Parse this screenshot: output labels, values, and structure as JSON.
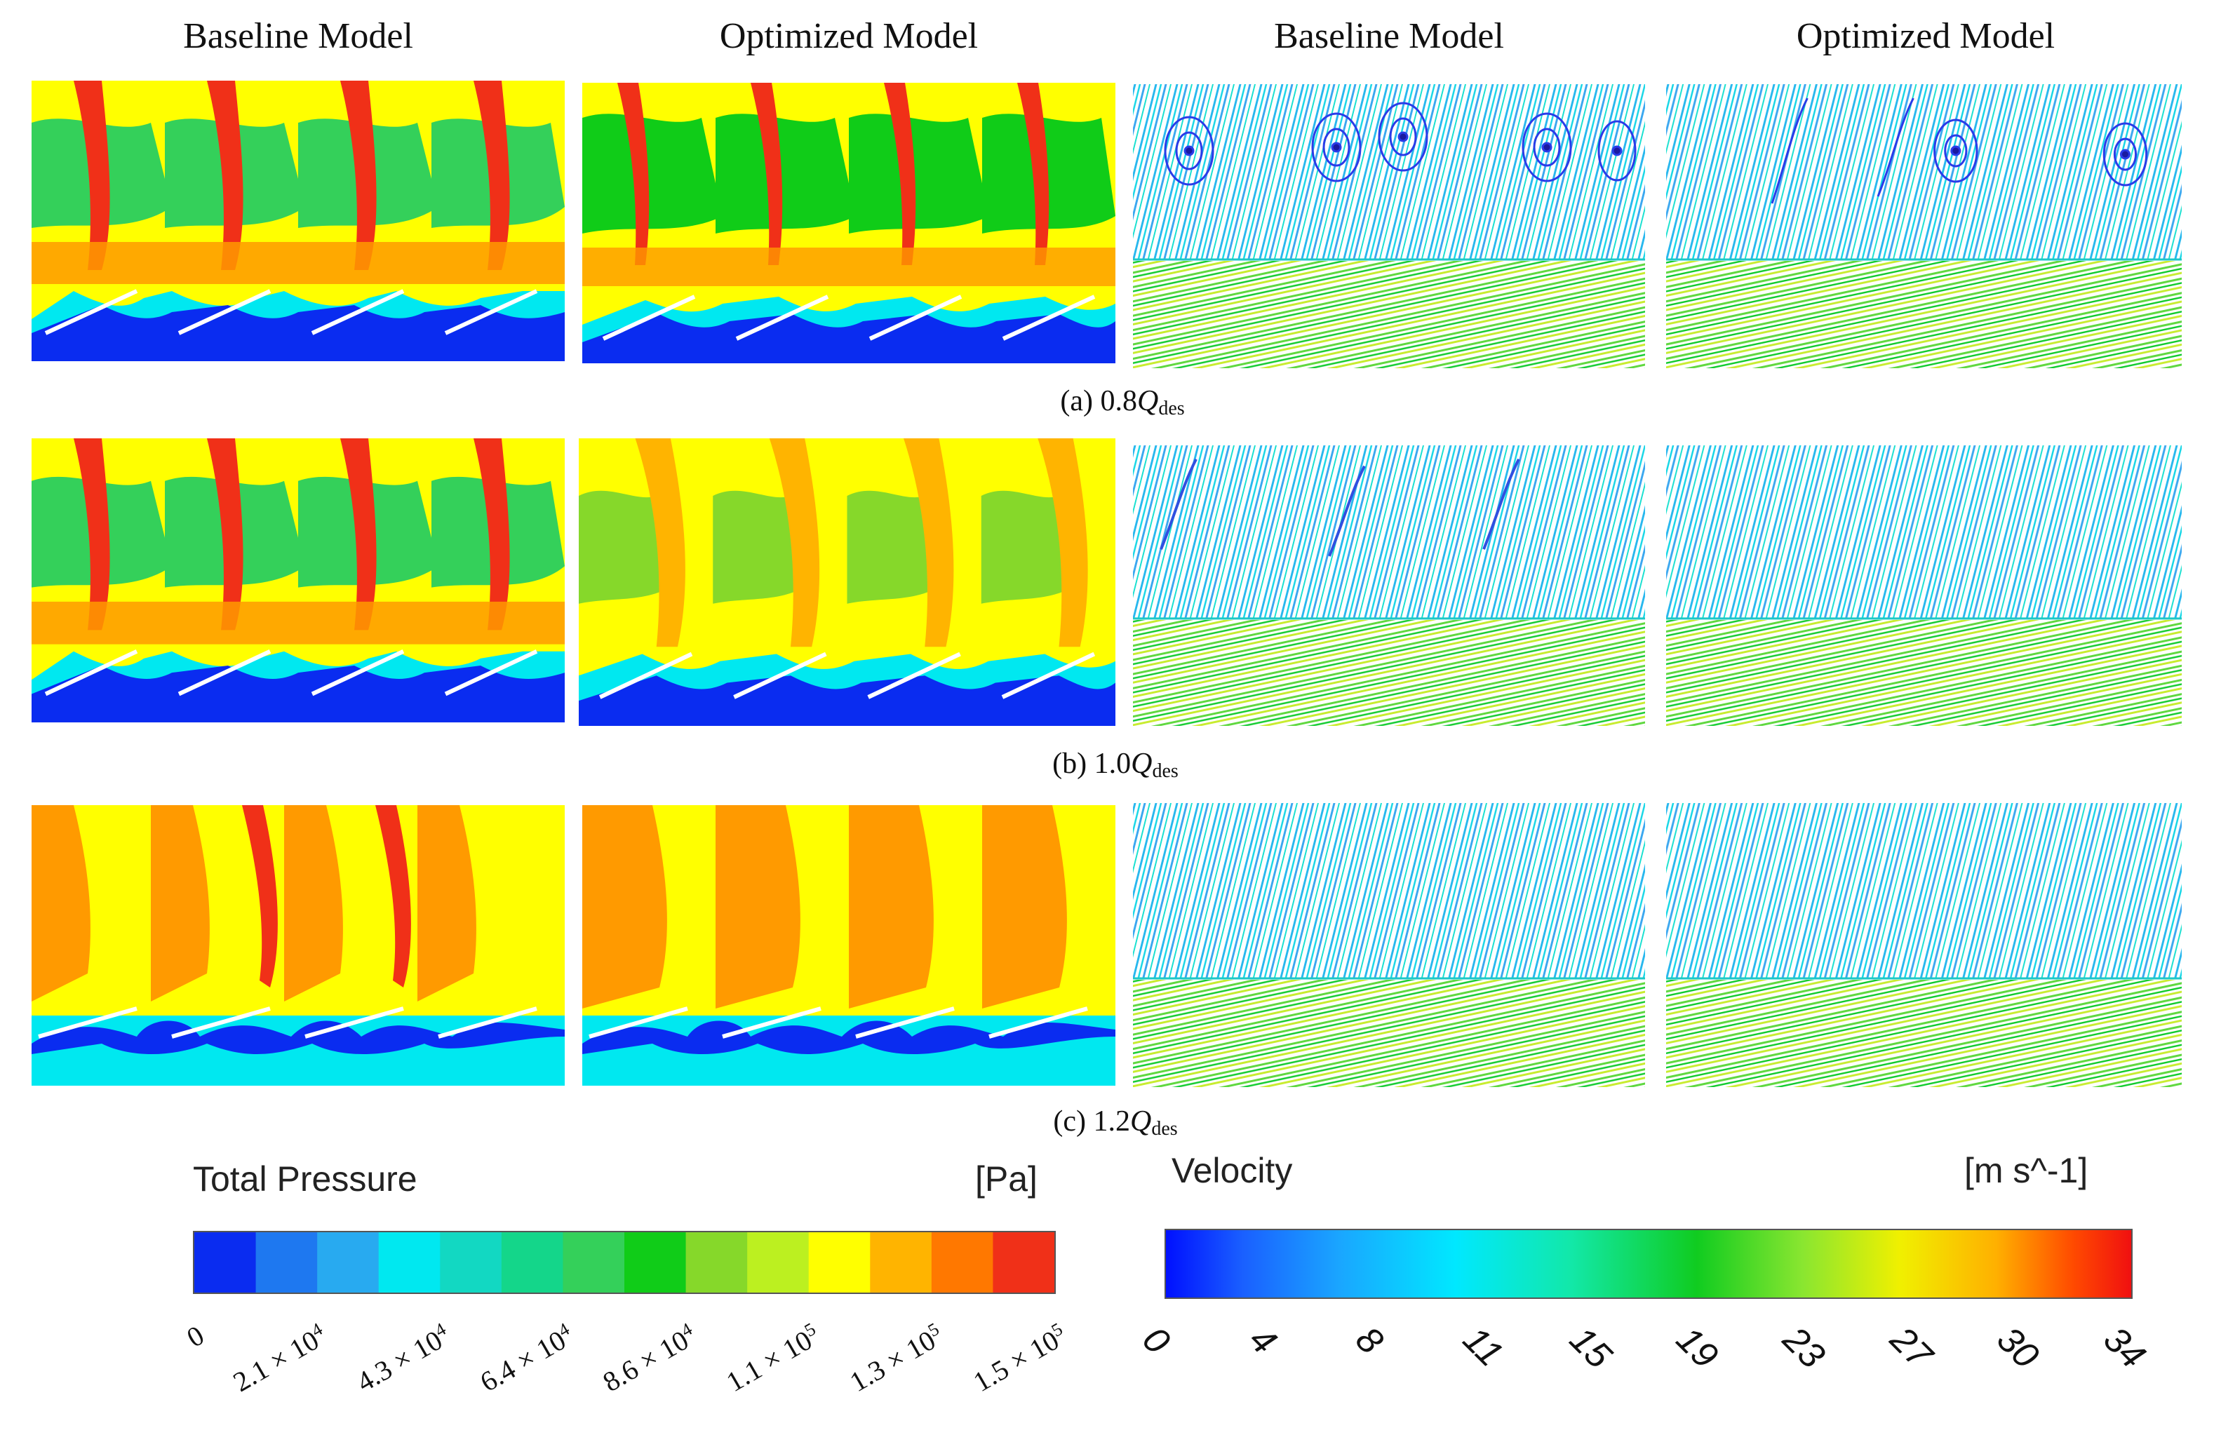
{
  "columns": {
    "col1": "Baseline Model",
    "col2": "Optimized Model",
    "col3": "Baseline Model",
    "col4": "Optimized Model"
  },
  "captions": {
    "a": {
      "prefix": "(a) 0.8",
      "q": "Q",
      "sub": "des"
    },
    "b": {
      "prefix": "(b) 1.0",
      "q": "Q",
      "sub": "des"
    },
    "c": {
      "prefix": "(c) 1.2",
      "q": "Q",
      "sub": "des"
    }
  },
  "pressure_legend": {
    "title": "Total Pressure",
    "units": "[Pa]",
    "ticks": [
      {
        "m": "0",
        "e": ""
      },
      {
        "m": "2.1 × 10",
        "e": "4"
      },
      {
        "m": "4.3 × 10",
        "e": "4"
      },
      {
        "m": "6.4 × 10",
        "e": "4"
      },
      {
        "m": "8.6 × 10",
        "e": "4"
      },
      {
        "m": "1.1 × 10",
        "e": "5"
      },
      {
        "m": "1.3 × 10",
        "e": "5"
      },
      {
        "m": "1.5 × 10",
        "e": "5"
      }
    ],
    "colors": [
      "#0a2cf0",
      "#1e78f0",
      "#28aaf0",
      "#00e8f0",
      "#12d8c2",
      "#14d68a",
      "#34d05a",
      "#10cc18",
      "#86d82a",
      "#bcf020",
      "#ffff00",
      "#ffb400",
      "#ff7800",
      "#f03018"
    ]
  },
  "velocity_legend": {
    "title": "Velocity",
    "units": "[m s^-1]",
    "ticks": [
      "0",
      "4",
      "8",
      "11",
      "15",
      "19",
      "23",
      "27",
      "30",
      "34"
    ]
  }
}
